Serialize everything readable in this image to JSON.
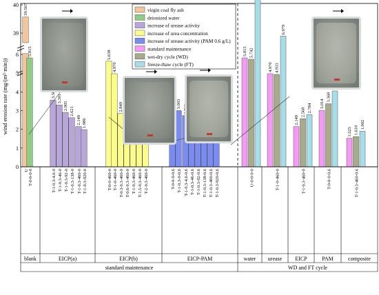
{
  "chart_data": {
    "type": "bar",
    "ylabel": "wind erosion rate (mg/(m²·min))",
    "yticks_lower": [
      "0",
      "1",
      "2",
      "3",
      "4",
      "5",
      "6"
    ],
    "yticks_upper": [
      "39",
      "40"
    ],
    "legend": [
      {
        "name": "virgin coal fly ash",
        "color": "#f5c59a"
      },
      {
        "name": "deionized water",
        "color": "#8fcc86"
      },
      {
        "name": "increase of urease activity",
        "color": "#b9a6d9"
      },
      {
        "name": "increase of urea concentration",
        "color": "#fbfb8c"
      },
      {
        "name": "increase of urease activity (PAM 0.6 g/L)",
        "color": "#7a8cf2"
      },
      {
        "name": "standard maintenance",
        "color": "#f59af5"
      },
      {
        "name": "wet-dry cycle (WD)",
        "color": "#a7ab8a"
      },
      {
        "name": "freeze-thaw cycle (FT)",
        "color": "#a6dde9"
      }
    ],
    "groups": [
      {
        "label": "blank",
        "section": "standard maintenance",
        "categories": [
          "U",
          "T-0-0-0-0"
        ]
      },
      {
        "label": "EICP(a)",
        "section": "standard maintenance",
        "categories": [
          "T-1-0.3-4.6-0",
          "T-1-0.3-46-0",
          "T-1-0.3-92-0",
          "T-1-0.3-138-0",
          "T-1-0.3-460-0",
          "T-1-0.3-920-0"
        ]
      },
      {
        "label": "EICP(b)",
        "section": "standard maintenance",
        "categories": [
          "T-0-0-460-0",
          "T-1-0-460-0",
          "T-0.3-0.3-460-0",
          "T-0.6-0.3-460-0",
          "T-1-0.3-460-0",
          "T-1.5-0.3-460-0",
          "T-2-0.3-460-0"
        ]
      },
      {
        "label": "EICP-PAM",
        "section": "standard maintenance",
        "categories": [
          "T-0-0-0-0.6",
          "T-1-0.3-0-0.6",
          "T-1-0.3-4.6-0.6",
          "T-1-0.3-46-0.6",
          "T-1-0.3-92-0.6",
          "T-1-0.3-138-0.6",
          "T-1-0.3-460-0.6",
          "T-1-0.3-920-0.6"
        ]
      },
      {
        "label": "water",
        "section": "WD and FT cycle",
        "categories": [
          "U-0-0-0-0"
        ]
      },
      {
        "label": "urease",
        "section": "WD and FT cycle",
        "categories": [
          "T-1-0-460-0"
        ]
      },
      {
        "label": "EICP",
        "section": "WD and FT cycle",
        "categories": [
          "T-1-0.3-460-0"
        ]
      },
      {
        "label": "PAM",
        "section": "WD and FT cycle",
        "categories": [
          "T-0-0-0-0.6"
        ]
      },
      {
        "label": "composite",
        "section": "WD and FT cycle",
        "categories": [
          "T-1-0.3-460-0.6"
        ]
      }
    ],
    "sections": [
      "standard maintenance",
      "WD and FT cycle"
    ],
    "bars_standard": [
      {
        "value": 39.567,
        "label": "39.567",
        "color": "#f5c59a",
        "group": 0
      },
      {
        "value": 5.815,
        "label": "5.815",
        "color": "#8fcc86",
        "group": 0
      },
      {
        "value": 3.565,
        "label": "3.565",
        "color": "#b9a6d9",
        "group": 1
      },
      {
        "value": 3.301,
        "label": "3.301",
        "color": "#b9a6d9",
        "group": 1
      },
      {
        "value": 2.905,
        "label": "2.905",
        "color": "#b9a6d9",
        "group": 1
      },
      {
        "value": 2.621,
        "label": "2.621",
        "color": "#b9a6d9",
        "group": 1
      },
      {
        "value": 2.149,
        "label": "2.149",
        "color": "#b9a6d9",
        "group": 1
      },
      {
        "value": 1.986,
        "label": "1.986",
        "color": "#b9a6d9",
        "group": 1
      },
      {
        "value": 5.638,
        "label": "5.638",
        "color": "#fbfb8c",
        "group": 2
      },
      {
        "value": 4.97,
        "label": "4.970",
        "color": "#fbfb8c",
        "group": 2
      },
      {
        "value": 2.849,
        "label": "2.849",
        "color": "#fbfb8c",
        "group": 2
      },
      {
        "value": 2.556,
        "label": "2.556",
        "color": "#fbfb8c",
        "group": 2
      },
      {
        "value": 2.149,
        "label": "2.149",
        "color": "#fbfb8c",
        "group": 2
      },
      {
        "value": 2.186,
        "label": "2.186",
        "color": "#fbfb8c",
        "group": 2
      },
      {
        "value": 2.394,
        "label": "2.394",
        "color": "#fbfb8c",
        "group": 2
      },
      {
        "value": 3.014,
        "label": "3.014",
        "color": "#7a8cf2",
        "group": 3
      },
      {
        "value": 3.003,
        "label": "3.003",
        "color": "#7a8cf2",
        "group": 3
      },
      {
        "value": 2.739,
        "label": "2.739",
        "color": "#7a8cf2",
        "group": 3
      },
      {
        "value": 2.391,
        "label": "2.391",
        "color": "#7a8cf2",
        "group": 3
      },
      {
        "value": 1.992,
        "label": "1.992",
        "color": "#7a8cf2",
        "group": 3
      },
      {
        "value": 1.815,
        "label": "1.815",
        "color": "#7a8cf2",
        "group": 3
      },
      {
        "value": 1.525,
        "label": "1.525",
        "color": "#7a8cf2",
        "group": 3
      },
      {
        "value": 1.455,
        "label": "1.455",
        "color": "#7a8cf2",
        "group": 3
      }
    ],
    "bars_cycle": [
      {
        "group": 4,
        "values": [
          5.815,
          5.742,
          10.552
        ],
        "labels": [
          "5.815",
          "5.742",
          "10.552"
        ]
      },
      {
        "group": 5,
        "values": [
          4.97,
          4.933,
          6.979
        ],
        "labels": [
          "4.970",
          "4.933",
          "6.979"
        ]
      },
      {
        "group": 6,
        "values": [
          2.149,
          2.568,
          2.784
        ],
        "labels": [
          "2.149",
          "2.568",
          "2.784"
        ]
      },
      {
        "group": 7,
        "values": [
          3.014,
          3.368,
          4.051
        ],
        "labels": [
          "3.014",
          "3.368",
          "4.051"
        ]
      },
      {
        "group": 8,
        "values": [
          1.525,
          1.61,
          1.902
        ],
        "labels": [
          "1.525",
          "1.610",
          "1.902"
        ]
      }
    ],
    "cycle_colors": [
      "#f59af5",
      "#a7ab8a",
      "#a6dde9"
    ]
  }
}
